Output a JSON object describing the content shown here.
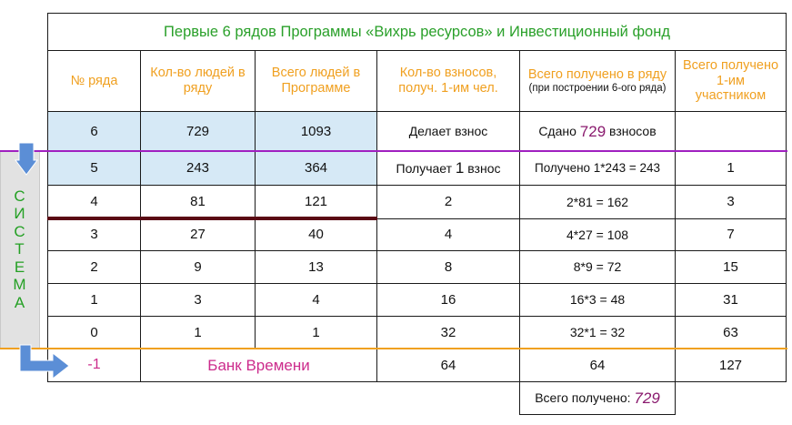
{
  "title": "Первые 6 рядов Программы «Вихрь ресурсов» и Инвестиционный фонд",
  "headers": {
    "row_no": "№ ряда",
    "people_in_row": "Кол-во людей в ряду",
    "people_total": "Всего людей в Программе",
    "contribs_1st": "Кол-во взносов, получ. 1-им чел.",
    "received_row_main": "Всего получено в ряду",
    "received_row_note": "(при построении 6-ого ряда)",
    "received_1st": "Всего получено 1-им участником"
  },
  "rows": [
    {
      "n": "6",
      "people": "729",
      "total": "1093",
      "contribs": "Делает взнос",
      "recv_pre": "Сдано ",
      "recv_num": "729",
      "recv_post": " взносов",
      "recv1": ""
    },
    {
      "n": "5",
      "people": "243",
      "total": "364",
      "contribs_pre": "Получает ",
      "contribs_num": "1",
      "contribs_post": " взнос",
      "recv": "Получено 1*243 = 243",
      "recv1": "1"
    },
    {
      "n": "4",
      "people": "81",
      "total": "121",
      "contribs": "2",
      "recv": "2*81 = 162",
      "recv1": "3"
    },
    {
      "n": "3",
      "people": "27",
      "total": "40",
      "contribs": "4",
      "recv": "4*27 = 108",
      "recv1": "7"
    },
    {
      "n": "2",
      "people": "9",
      "total": "13",
      "contribs": "8",
      "recv": "8*9 = 72",
      "recv1": "15"
    },
    {
      "n": "1",
      "people": "3",
      "total": "4",
      "contribs": "16",
      "recv": "16*3 = 48",
      "recv1": "31"
    },
    {
      "n": "0",
      "people": "1",
      "total": "1",
      "contribs": "32",
      "recv": "32*1 = 32",
      "recv1": "63"
    }
  ],
  "bank_row": {
    "n": "-1",
    "label": "Банк Времени",
    "contribs": "64",
    "recv": "64",
    "recv1": "127"
  },
  "summary": {
    "label": "Всего получено: ",
    "value": "729"
  },
  "sistema_letters": [
    "С",
    "И",
    "С",
    "Т",
    "Е",
    "М",
    "А"
  ],
  "colors": {
    "title_green": "#2aa02a",
    "header_orange": "#f0a020",
    "highlight_blue": "#d6e9f6",
    "purple_line": "#a020c0",
    "orange_line": "#f0a020",
    "arrow_blue": "#5b8ed6",
    "accent_magenta": "#cc2c8c"
  }
}
